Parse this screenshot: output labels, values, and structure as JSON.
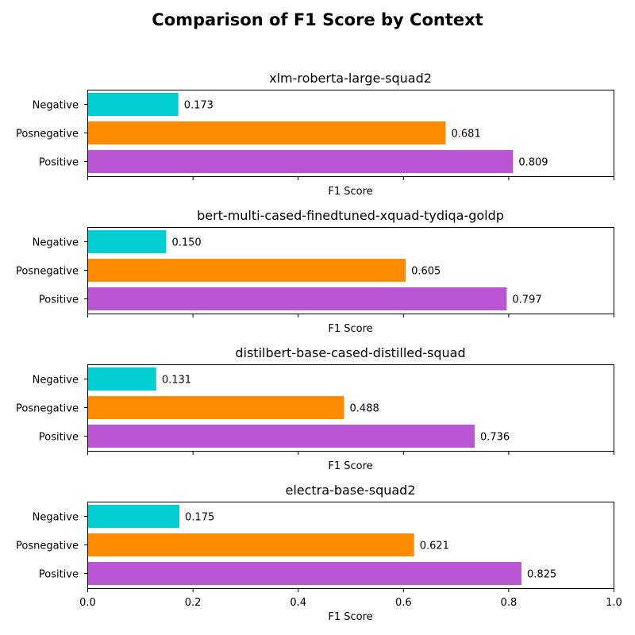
{
  "figure_title": "Comparison of F1 Score by Context",
  "chart_data": [
    {
      "type": "bar",
      "orientation": "horizontal",
      "title": "xlm-roberta-large-squad2",
      "categories": [
        "Positive",
        "Posnegative",
        "Negative"
      ],
      "values": [
        0.809,
        0.681,
        0.173
      ],
      "value_labels": [
        "0.809",
        "0.681",
        "0.173"
      ],
      "xlabel": "F1 Score",
      "ylabel": "",
      "xlim": [
        0,
        1
      ],
      "x_tick_labels_visible": false
    },
    {
      "type": "bar",
      "orientation": "horizontal",
      "title": "bert-multi-cased-finedtuned-xquad-tydiqa-goldp",
      "categories": [
        "Positive",
        "Posnegative",
        "Negative"
      ],
      "values": [
        0.797,
        0.605,
        0.15
      ],
      "value_labels": [
        "0.797",
        "0.605",
        "0.150"
      ],
      "xlabel": "F1 Score",
      "ylabel": "",
      "xlim": [
        0,
        1
      ],
      "x_tick_labels_visible": false
    },
    {
      "type": "bar",
      "orientation": "horizontal",
      "title": "distilbert-base-cased-distilled-squad",
      "categories": [
        "Positive",
        "Posnegative",
        "Negative"
      ],
      "values": [
        0.736,
        0.488,
        0.131
      ],
      "value_labels": [
        "0.736",
        "0.488",
        "0.131"
      ],
      "xlabel": "F1 Score",
      "ylabel": "",
      "xlim": [
        0,
        1
      ],
      "x_tick_labels_visible": false
    },
    {
      "type": "bar",
      "orientation": "horizontal",
      "title": "electra-base-squad2",
      "categories": [
        "Positive",
        "Posnegative",
        "Negative"
      ],
      "values": [
        0.825,
        0.621,
        0.175
      ],
      "value_labels": [
        "0.825",
        "0.621",
        "0.175"
      ],
      "xlabel": "F1 Score",
      "ylabel": "",
      "xlim": [
        0,
        1
      ],
      "x_tick_labels_visible": true
    }
  ],
  "x_ticks": [
    0.0,
    0.2,
    0.4,
    0.6,
    0.8,
    1.0
  ],
  "x_tick_labels": [
    "0.0",
    "0.2",
    "0.4",
    "0.6",
    "0.8",
    "1.0"
  ],
  "category_colors": {
    "Positive": "#ba55d3",
    "Posnegative": "#ff8c00",
    "Negative": "#00ced1"
  },
  "grid": false,
  "legend": "none"
}
